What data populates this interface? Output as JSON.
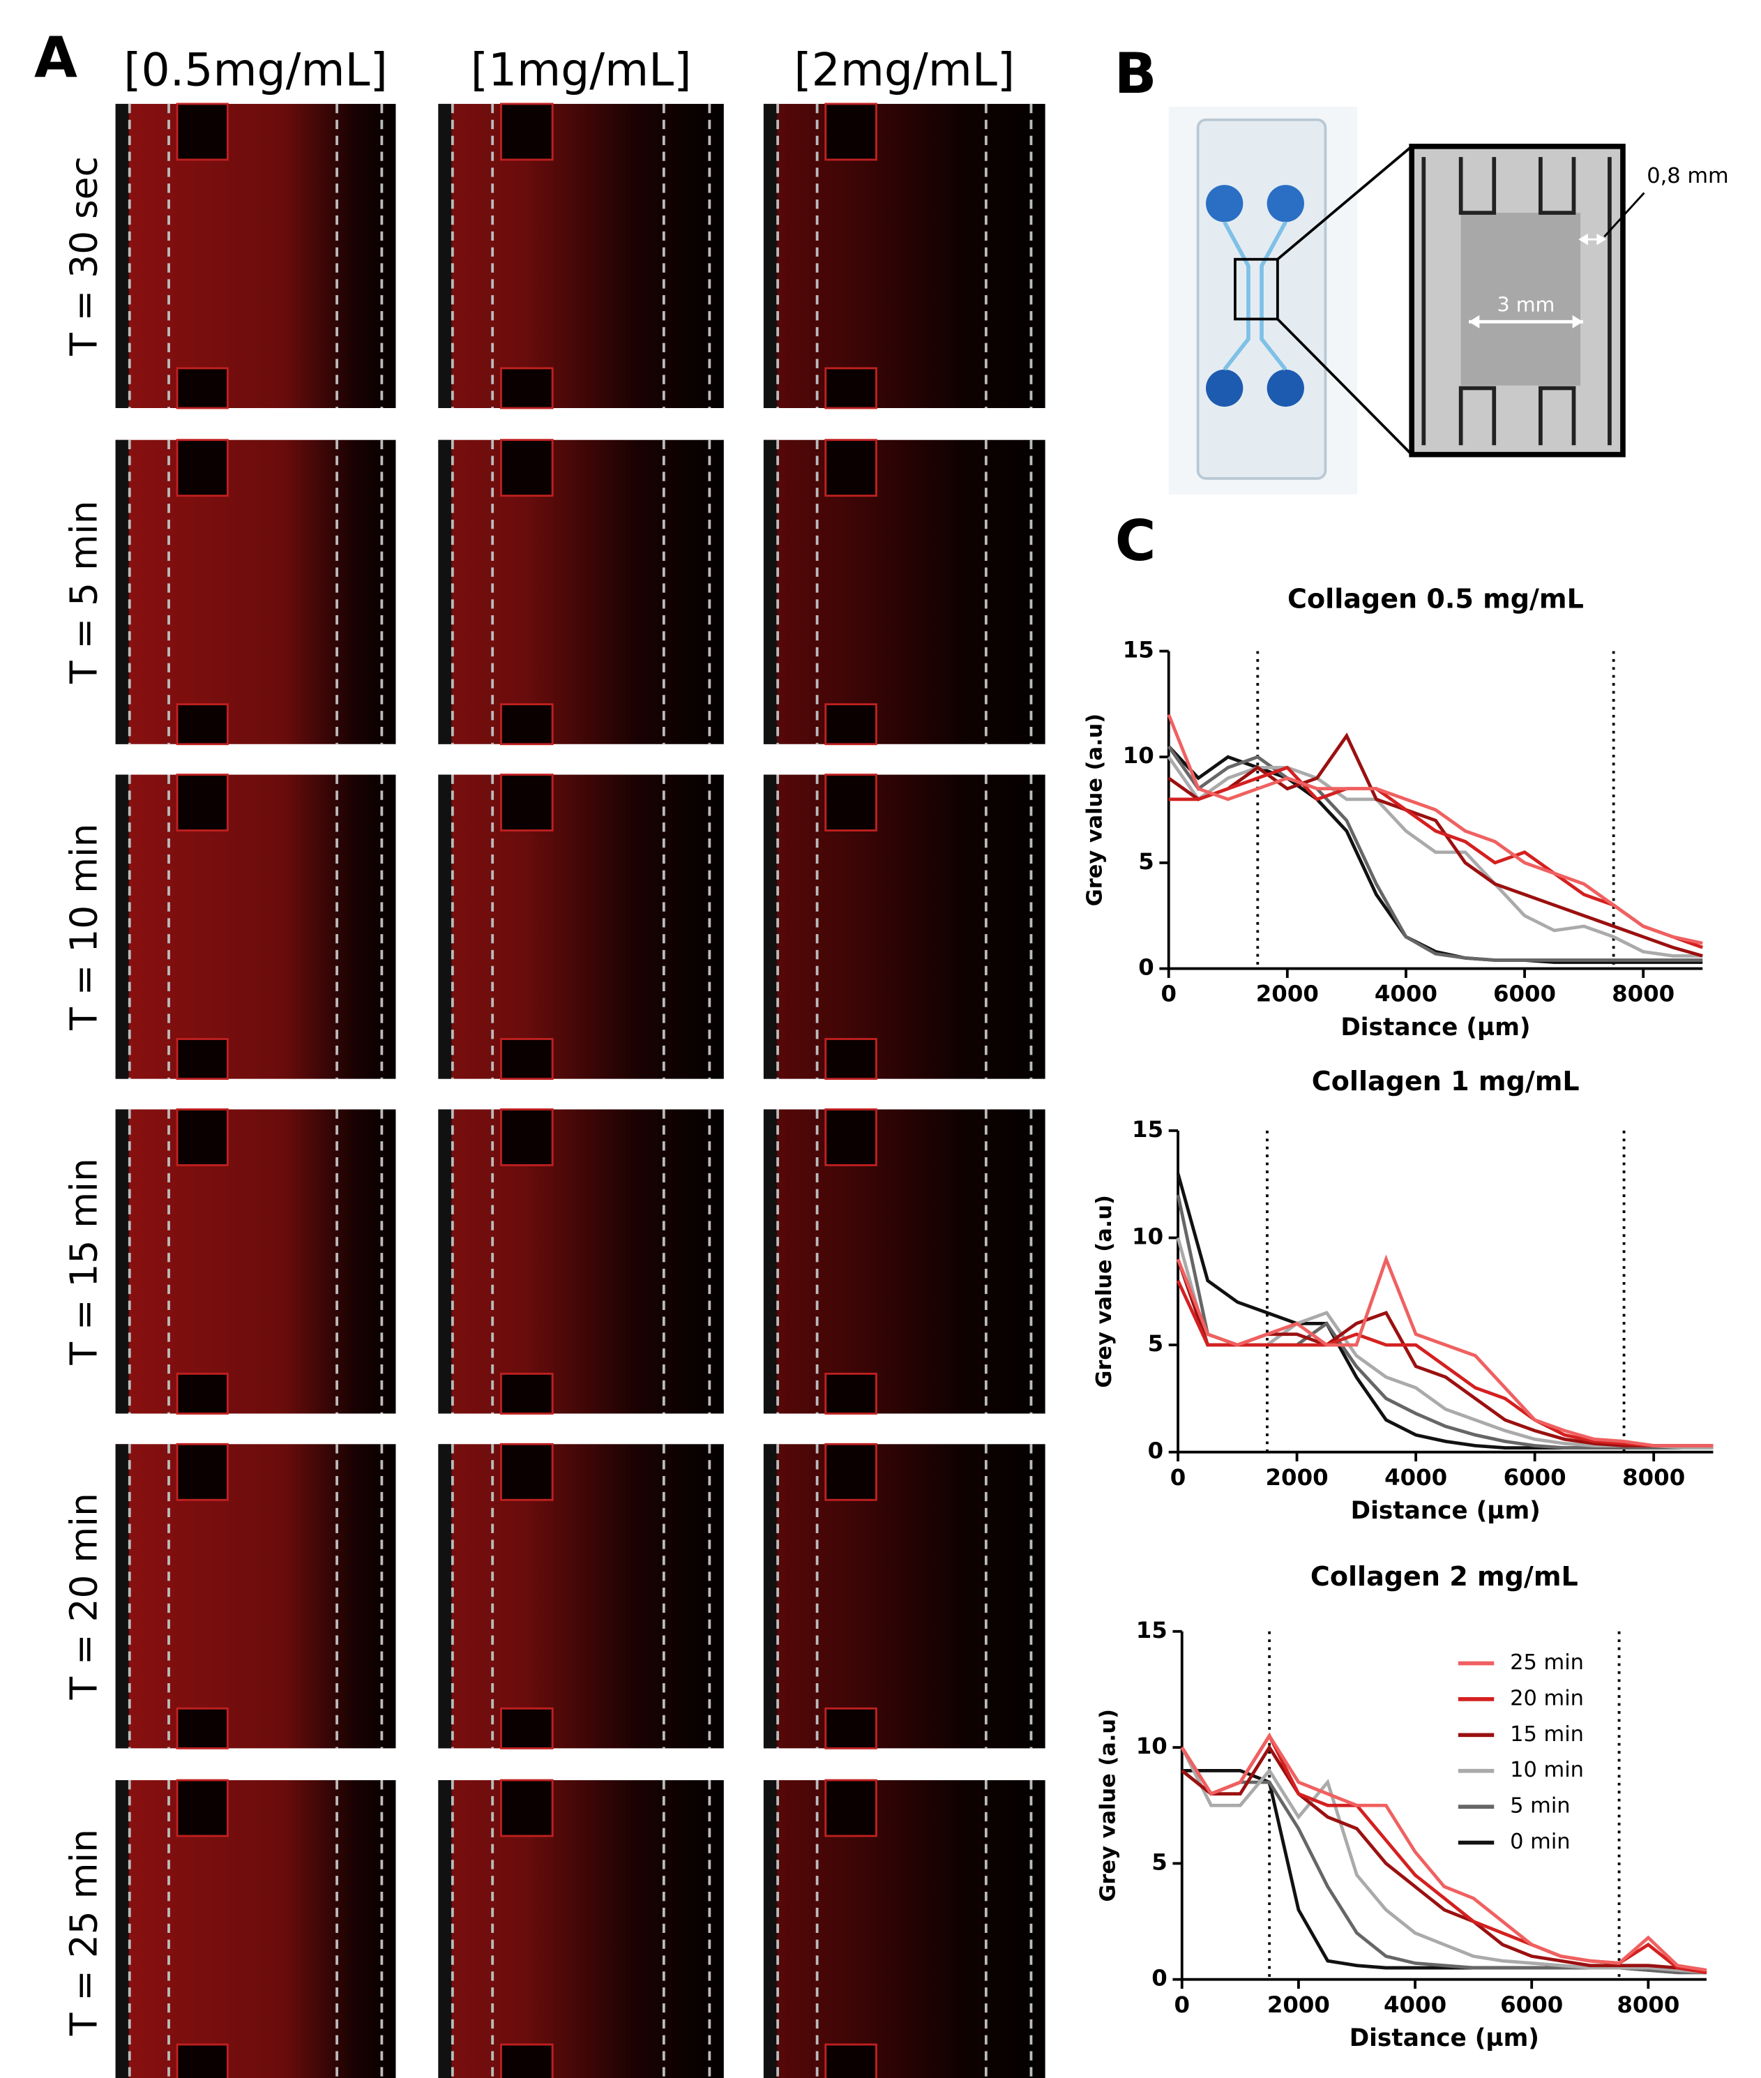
{
  "panel_labels": [
    "A",
    "B",
    "C"
  ],
  "panel_a": {
    "columns": [
      "[0.5mg/mL]",
      "[1mg/mL]",
      "[2mg/mL]"
    ],
    "rows": [
      "T = 30 sec",
      "T = 5 min",
      "T = 10 min",
      "T = 15 min",
      "T = 20 min",
      "T = 25 min"
    ]
  },
  "panel_b": {
    "width_label": "3 mm",
    "gap_label": "0,8 mm"
  },
  "chart_data": [
    {
      "type": "line",
      "title": "Collagen 0.5 mg/mL",
      "xlabel": "Distance (µm)",
      "ylabel": "Grey value (a.u)",
      "xlim": [
        0,
        9000
      ],
      "ylim": [
        0,
        15
      ],
      "xticks": [
        0,
        2000,
        4000,
        6000,
        8000
      ],
      "yticks": [
        0,
        5,
        10,
        15
      ],
      "vlines": [
        1500,
        7500
      ],
      "x": [
        0,
        500,
        1000,
        1500,
        2000,
        2500,
        3000,
        3500,
        4000,
        4500,
        5000,
        5500,
        6000,
        6500,
        7000,
        7500,
        8000,
        8500,
        9000
      ],
      "series": [
        {
          "color": "#111111",
          "values": [
            10.5,
            9,
            10,
            9.5,
            9,
            8,
            6.5,
            3.5,
            1.5,
            0.8,
            0.5,
            0.4,
            0.4,
            0.3,
            0.3,
            0.3,
            0.3,
            0.3,
            0.3
          ]
        },
        {
          "color": "#666666",
          "values": [
            10.5,
            8.5,
            9.5,
            10,
            9,
            8.5,
            7,
            4,
            1.5,
            0.7,
            0.5,
            0.4,
            0.4,
            0.4,
            0.4,
            0.4,
            0.4,
            0.4,
            0.4
          ]
        },
        {
          "color": "#aaaaaa",
          "values": [
            10,
            8,
            9,
            9.5,
            9.5,
            9,
            8,
            8,
            6.5,
            5.5,
            5.5,
            4,
            2.5,
            1.8,
            2,
            1.5,
            0.8,
            0.6,
            0.6
          ]
        },
        {
          "color": "#9b1010",
          "values": [
            9,
            8,
            8.5,
            9.5,
            8.5,
            9,
            11,
            8,
            7.5,
            7,
            5,
            4,
            3.5,
            3,
            2.5,
            2,
            1.5,
            1,
            0.6
          ]
        },
        {
          "color": "#d42020",
          "values": [
            8,
            8,
            8.5,
            9,
            9.5,
            8,
            8.5,
            8.5,
            7.5,
            6.5,
            6,
            5,
            5.5,
            4.5,
            3.5,
            3,
            2,
            1.5,
            1
          ]
        },
        {
          "color": "#f06060",
          "values": [
            12,
            8.5,
            8,
            8.5,
            9,
            8.5,
            8.5,
            8.5,
            8,
            7.5,
            6.5,
            6,
            5,
            4.5,
            4,
            3,
            2,
            1.5,
            1.2
          ]
        }
      ]
    },
    {
      "type": "line",
      "title": "Collagen 1 mg/mL",
      "xlabel": "Distance (µm)",
      "ylabel": "Grey value (a.u)",
      "xlim": [
        0,
        9000
      ],
      "ylim": [
        0,
        15
      ],
      "xticks": [
        0,
        2000,
        4000,
        6000,
        8000
      ],
      "yticks": [
        0,
        5,
        10,
        15
      ],
      "vlines": [
        1500,
        7500
      ],
      "x": [
        0,
        500,
        1000,
        1500,
        2000,
        2500,
        3000,
        3500,
        4000,
        4500,
        5000,
        5500,
        6000,
        6500,
        7000,
        7500,
        8000,
        8500,
        9000
      ],
      "series": [
        {
          "color": "#111111",
          "values": [
            13,
            8,
            7,
            6.5,
            6,
            6,
            3.5,
            1.5,
            0.8,
            0.5,
            0.3,
            0.2,
            0.2,
            0.2,
            0.2,
            0.2,
            0.2,
            0.2,
            0.2
          ]
        },
        {
          "color": "#666666",
          "values": [
            12,
            5.5,
            5,
            5,
            5,
            6,
            4,
            2.5,
            1.8,
            1.2,
            0.8,
            0.5,
            0.3,
            0.2,
            0.2,
            0.2,
            0.2,
            0.2,
            0.2
          ]
        },
        {
          "color": "#aaaaaa",
          "values": [
            10,
            5,
            5,
            5,
            6,
            6.5,
            4.5,
            3.5,
            3,
            2,
            1.5,
            1,
            0.6,
            0.4,
            0.3,
            0.3,
            0.3,
            0.2,
            0.2
          ]
        },
        {
          "color": "#9b1010",
          "values": [
            9,
            5,
            5,
            5.5,
            5.5,
            5,
            6,
            6.5,
            4,
            3.5,
            2.5,
            1.5,
            1,
            0.6,
            0.4,
            0.3,
            0.3,
            0.3,
            0.3
          ]
        },
        {
          "color": "#d42020",
          "values": [
            8,
            5,
            5,
            5,
            5,
            5,
            5.5,
            5,
            5,
            4,
            3,
            2.5,
            1.5,
            0.8,
            0.5,
            0.4,
            0.3,
            0.3,
            0.3
          ]
        },
        {
          "color": "#f06060",
          "values": [
            9,
            5.5,
            5,
            5.5,
            6,
            5,
            5,
            9,
            5.5,
            5,
            4.5,
            3,
            1.5,
            1,
            0.6,
            0.5,
            0.3,
            0.3,
            0.3
          ]
        }
      ]
    },
    {
      "type": "line",
      "title": "Collagen 2 mg/mL",
      "xlabel": "Distance (µm)",
      "ylabel": "Grey value (a.u)",
      "xlim": [
        0,
        9000
      ],
      "ylim": [
        0,
        15
      ],
      "xticks": [
        0,
        2000,
        4000,
        6000,
        8000
      ],
      "yticks": [
        0,
        5,
        10,
        15
      ],
      "vlines": [
        1500,
        7500
      ],
      "legend": "upper right",
      "x": [
        0,
        500,
        1000,
        1500,
        2000,
        2500,
        3000,
        3500,
        4000,
        4500,
        5000,
        5500,
        6000,
        6500,
        7000,
        7500,
        8000,
        8500,
        9000
      ],
      "series": [
        {
          "name": "0 min",
          "color": "#111111",
          "values": [
            9,
            9,
            9,
            8.5,
            3,
            0.8,
            0.6,
            0.5,
            0.5,
            0.5,
            0.5,
            0.5,
            0.5,
            0.5,
            0.5,
            0.5,
            0.4,
            0.3,
            0.3
          ]
        },
        {
          "name": "5 min",
          "color": "#666666",
          "values": [
            9,
            8,
            8.5,
            8.5,
            6.5,
            4,
            2,
            1,
            0.7,
            0.6,
            0.5,
            0.5,
            0.5,
            0.5,
            0.5,
            0.5,
            0.4,
            0.3,
            0.3
          ]
        },
        {
          "name": "10 min",
          "color": "#aaaaaa",
          "values": [
            10,
            7.5,
            7.5,
            9,
            7,
            8.5,
            4.5,
            3,
            2,
            1.5,
            1,
            0.8,
            0.7,
            0.6,
            0.5,
            0.5,
            0.5,
            0.4,
            0.3
          ]
        },
        {
          "name": "15 min",
          "color": "#9b1010",
          "values": [
            9,
            8,
            8,
            10,
            8,
            7,
            6.5,
            5,
            4,
            3,
            2.5,
            1.5,
            1,
            0.8,
            0.6,
            0.6,
            0.6,
            0.5,
            0.3
          ]
        },
        {
          "name": "20 min",
          "color": "#d42020",
          "values": [
            10,
            8,
            8.5,
            10.5,
            8,
            7.5,
            7.5,
            6,
            4.5,
            3.5,
            2.5,
            2,
            1.5,
            1,
            0.8,
            0.7,
            1.5,
            0.5,
            0.3
          ]
        },
        {
          "name": "25 min",
          "color": "#f06060",
          "values": [
            10,
            8,
            8.5,
            10.5,
            8.5,
            8,
            7.5,
            7.5,
            5.5,
            4,
            3.5,
            2.5,
            1.5,
            1,
            0.8,
            0.7,
            1.8,
            0.6,
            0.4
          ]
        }
      ]
    }
  ]
}
